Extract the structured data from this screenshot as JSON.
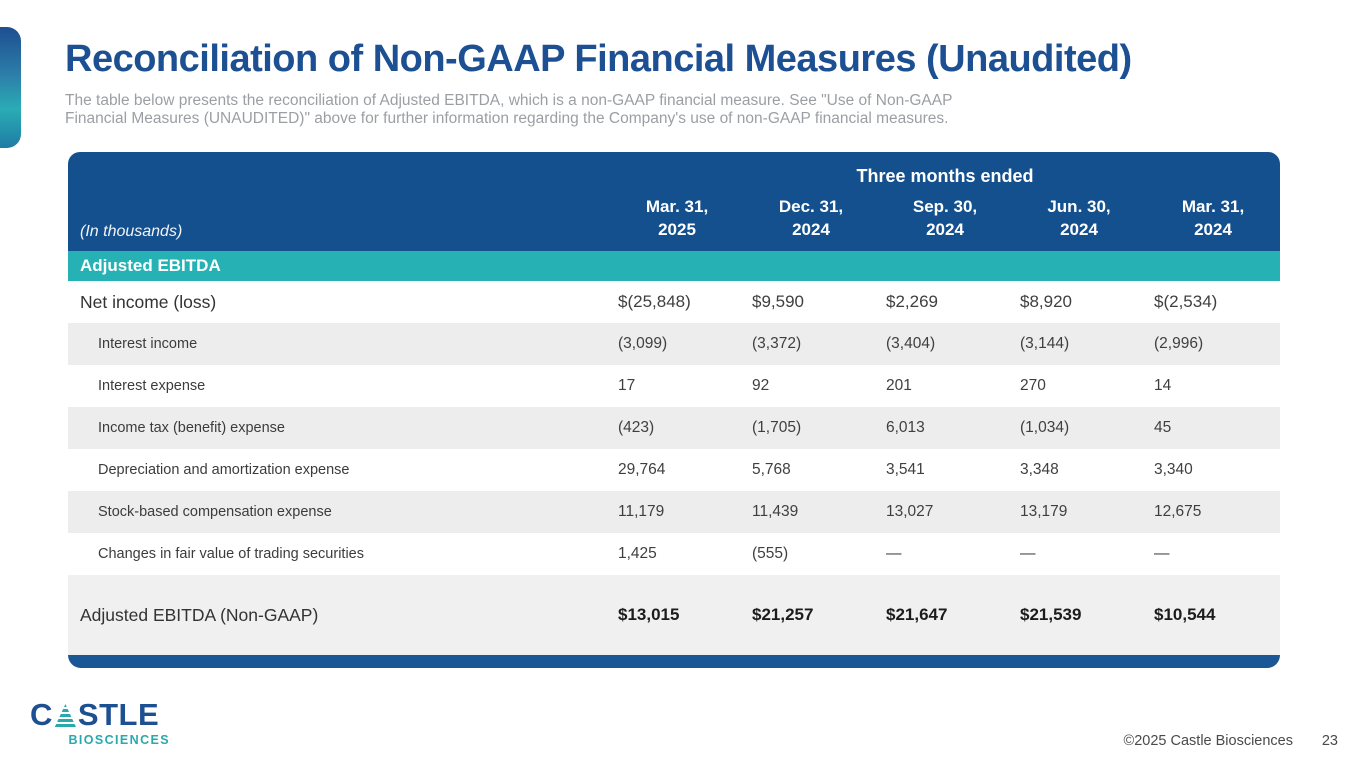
{
  "slide": {
    "title": "Reconciliation of Non-GAAP Financial Measures (Unaudited)",
    "subtitle_line1": "The table below presents the reconciliation of Adjusted EBITDA, which is a non-GAAP financial measure. See \"Use of Non-GAAP",
    "subtitle_line2": "Financial Measures (UNAUDITED)\" above for further information regarding the Company's use of non-GAAP financial measures."
  },
  "table": {
    "units_note": "(In thousands)",
    "period_header": "Three months ended",
    "columns": [
      {
        "month": "Mar. 31,",
        "year": "2025"
      },
      {
        "month": "Dec. 31,",
        "year": "2024"
      },
      {
        "month": "Sep. 30,",
        "year": "2024"
      },
      {
        "month": "Jun. 30,",
        "year": "2024"
      },
      {
        "month": "Mar. 31,",
        "year": "2024"
      }
    ],
    "section_header": "Adjusted EBITDA",
    "rows": [
      {
        "label": "Net income (loss)",
        "values": [
          "$(25,848)",
          "$9,590",
          "$2,269",
          "$8,920",
          "$(2,534)"
        ]
      },
      {
        "label": "Interest income",
        "values": [
          "(3,099)",
          "(3,372)",
          "(3,404)",
          "(3,144)",
          "(2,996)"
        ]
      },
      {
        "label": "Interest expense",
        "values": [
          "17",
          "92",
          "201",
          "270",
          "14"
        ]
      },
      {
        "label": "Income tax (benefit) expense",
        "values": [
          "(423)",
          "(1,705)",
          "6,013",
          "(1,034)",
          "45"
        ]
      },
      {
        "label": "Depreciation and amortization expense",
        "values": [
          "29,764",
          "5,768",
          "3,541",
          "3,348",
          "3,340"
        ]
      },
      {
        "label": "Stock-based compensation expense",
        "values": [
          "11,179",
          "11,439",
          "13,027",
          "13,179",
          "12,675"
        ]
      },
      {
        "label": "Changes in fair value of trading securities",
        "values": [
          "1,425",
          "(555)",
          "—",
          "—",
          "—"
        ]
      }
    ],
    "total_row": {
      "label": "Adjusted EBITDA (Non-GAAP)",
      "values": [
        "$13,015",
        "$21,257",
        "$21,647",
        "$21,539",
        "$10,544"
      ]
    }
  },
  "footer": {
    "logo_text": "C",
    "logo_text_rest": "STLE",
    "logo_subtext": "BIOSCIENCES",
    "copyright": "©2025 Castle Biosciences",
    "page_number": "23"
  },
  "colors": {
    "brand_blue": "#1d5092",
    "header_blue": "#14508e",
    "bottom_bar_blue": "#1b5794",
    "teal": "#26b2b5",
    "stripe_gray": "#ededed",
    "total_row_gray": "#f0f0f0"
  }
}
